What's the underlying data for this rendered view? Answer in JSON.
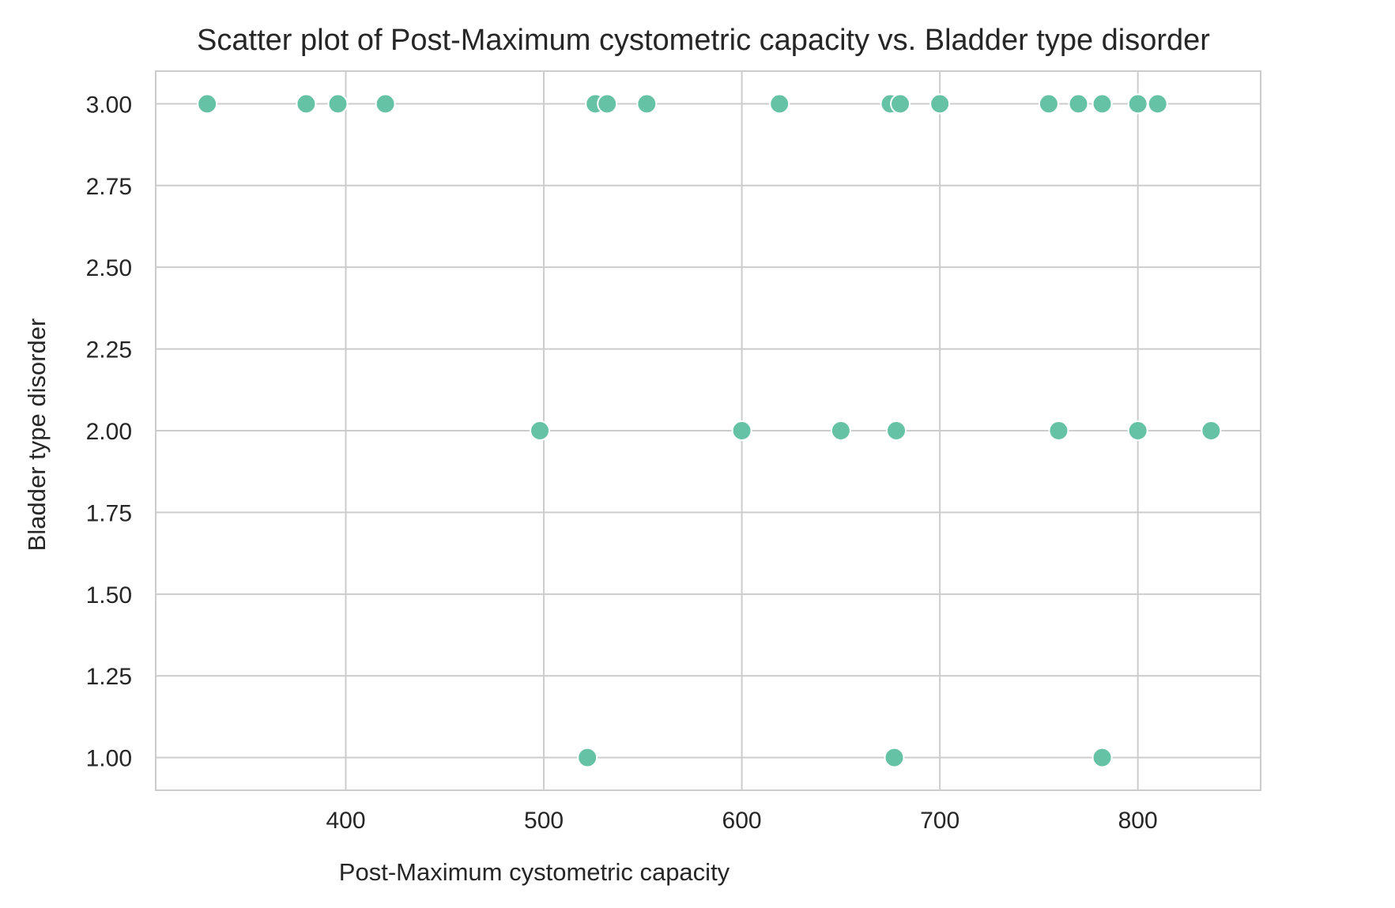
{
  "chart_data": {
    "type": "scatter",
    "title": "Scatter plot of Post-Maximum cystometric capacity vs. Bladder type disorder",
    "xlabel": "Post-Maximum cystometric capacity",
    "ylabel": "Bladder type disorder",
    "xlim": [
      304,
      862
    ],
    "ylim": [
      0.9,
      3.1
    ],
    "x_ticks": [
      400,
      500,
      600,
      700,
      800
    ],
    "x_tick_labels": [
      "400",
      "500",
      "600",
      "700",
      "800"
    ],
    "y_ticks": [
      1.0,
      1.25,
      1.5,
      1.75,
      2.0,
      2.25,
      2.5,
      2.75,
      3.0
    ],
    "y_tick_labels": [
      "1.00",
      "1.25",
      "1.50",
      "1.75",
      "2.00",
      "2.25",
      "2.50",
      "2.75",
      "3.00"
    ],
    "grid": true,
    "marker_color": "#66c2a5",
    "points": [
      {
        "x": 330,
        "y": 3
      },
      {
        "x": 380,
        "y": 3
      },
      {
        "x": 396,
        "y": 3
      },
      {
        "x": 420,
        "y": 3
      },
      {
        "x": 526,
        "y": 3
      },
      {
        "x": 532,
        "y": 3
      },
      {
        "x": 552,
        "y": 3
      },
      {
        "x": 619,
        "y": 3
      },
      {
        "x": 675,
        "y": 3
      },
      {
        "x": 680,
        "y": 3
      },
      {
        "x": 700,
        "y": 3
      },
      {
        "x": 755,
        "y": 3
      },
      {
        "x": 770,
        "y": 3
      },
      {
        "x": 782,
        "y": 3
      },
      {
        "x": 800,
        "y": 3
      },
      {
        "x": 810,
        "y": 3
      },
      {
        "x": 498,
        "y": 2
      },
      {
        "x": 600,
        "y": 2
      },
      {
        "x": 650,
        "y": 2
      },
      {
        "x": 678,
        "y": 2
      },
      {
        "x": 760,
        "y": 2
      },
      {
        "x": 800,
        "y": 2
      },
      {
        "x": 837,
        "y": 2
      },
      {
        "x": 522,
        "y": 1
      },
      {
        "x": 677,
        "y": 1
      },
      {
        "x": 782,
        "y": 1
      }
    ]
  }
}
